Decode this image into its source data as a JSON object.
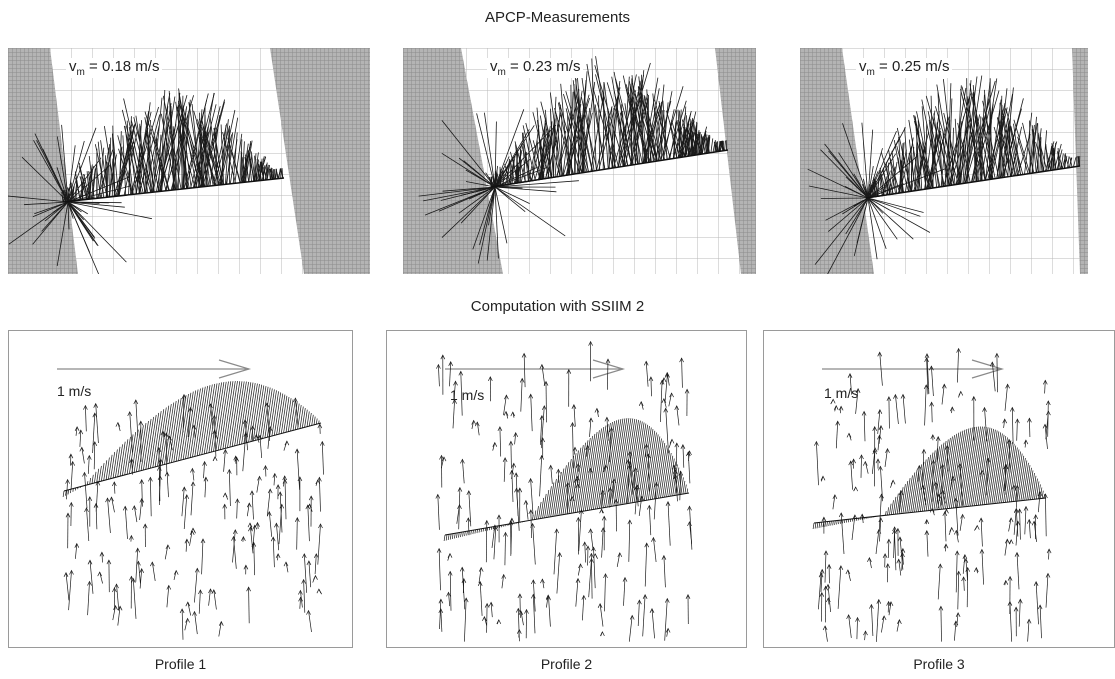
{
  "headings": {
    "measurements": "APCP-Measurements",
    "computation": "Computation with SSIIM 2"
  },
  "measurement_panels": [
    {
      "vm_symbol": "v",
      "vm_subscript": "m",
      "vm_value": "= 0.18 m/s"
    },
    {
      "vm_symbol": "v",
      "vm_subscript": "m",
      "vm_value": "= 0.23 m/s"
    },
    {
      "vm_symbol": "v",
      "vm_subscript": "m",
      "vm_value": "= 0.25 m/s"
    }
  ],
  "computation_panels": [
    {
      "scale_label": "1 m/s",
      "caption": "Profile 1"
    },
    {
      "scale_label": "1 m/s",
      "caption": "Profile 2"
    },
    {
      "scale_label": "1 m/s",
      "caption": "Profile 3"
    }
  ],
  "colors": {
    "grid": "#b9b9b9",
    "bank_fill": "#8c8c8c",
    "vectors": "#1a1a1a",
    "scale_arrow": "#8a8a8a",
    "frame": "#9a9a9a"
  }
}
